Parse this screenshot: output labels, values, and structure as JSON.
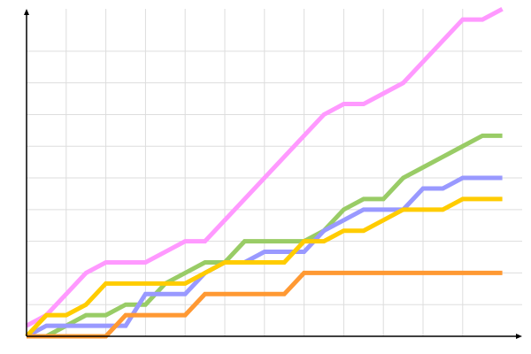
{
  "chart_data": {
    "type": "line",
    "title": "",
    "xlabel": "",
    "ylabel": "",
    "x": [
      0,
      1,
      2,
      3,
      4,
      5,
      6,
      7,
      8,
      9,
      10,
      11,
      12,
      13,
      14,
      15,
      16,
      17,
      18,
      19,
      20,
      21,
      22,
      23,
      24
    ],
    "xlim": [
      0,
      25
    ],
    "ylim": [
      0,
      31
    ],
    "grid": true,
    "x_grid_step": 2,
    "y_grid_step": 3,
    "tick_labels_shown": false,
    "legend": "none",
    "series": [
      {
        "color": "#ff99ff",
        "values": [
          1,
          2,
          4,
          6,
          7,
          7,
          7,
          8,
          9,
          9,
          11,
          13,
          15,
          17,
          19,
          21,
          22,
          22,
          23,
          24,
          26,
          28,
          30,
          30,
          31
        ]
      },
      {
        "color": "#99cc66",
        "values": [
          0,
          0,
          1,
          2,
          2,
          3,
          3,
          5,
          6,
          7,
          7,
          9,
          9,
          9,
          9,
          10,
          12,
          13,
          13,
          15,
          16,
          17,
          18,
          19,
          19
        ]
      },
      {
        "color": "#9999ff",
        "values": [
          0,
          1,
          1,
          1,
          1,
          1,
          4,
          4,
          4,
          6,
          7,
          7,
          8,
          8,
          8,
          10,
          11,
          12,
          12,
          12,
          14,
          14,
          15,
          15,
          15
        ]
      },
      {
        "color": "#ffcc00",
        "values": [
          0,
          2,
          2,
          3,
          5,
          5,
          5,
          5,
          5,
          6,
          7,
          7,
          7,
          7,
          9,
          9,
          10,
          10,
          11,
          12,
          12,
          12,
          13,
          13,
          13
        ]
      },
      {
        "color": "#ff9933",
        "values": [
          0,
          0,
          0,
          0,
          0,
          2,
          2,
          2,
          2,
          4,
          4,
          4,
          4,
          4,
          6,
          6,
          6,
          6,
          6,
          6,
          6,
          6,
          6,
          6,
          6
        ]
      }
    ]
  }
}
